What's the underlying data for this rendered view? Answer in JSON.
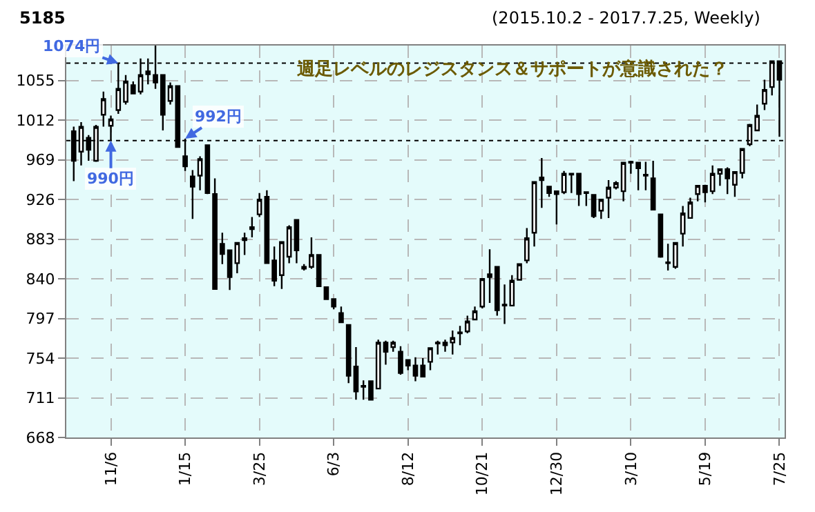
{
  "chart_data": {
    "type": "candlestick",
    "title": "5185",
    "subtitle": "(2015.10.2 - 2017.7.25, Weekly)",
    "categories": [
      null,
      null,
      null,
      null,
      null,
      "11/6",
      null,
      null,
      null,
      null,
      null,
      null,
      null,
      null,
      null,
      "1/15",
      null,
      null,
      null,
      null,
      null,
      null,
      null,
      null,
      null,
      "3/25",
      null,
      null,
      null,
      null,
      null,
      null,
      null,
      null,
      null,
      "6/3",
      null,
      null,
      null,
      null,
      null,
      null,
      null,
      null,
      null,
      "8/12",
      null,
      null,
      null,
      null,
      null,
      null,
      null,
      null,
      null,
      "10/21",
      null,
      null,
      null,
      null,
      null,
      null,
      null,
      null,
      null,
      "12/30",
      null,
      null,
      null,
      null,
      null,
      null,
      null,
      null,
      null,
      "3/10",
      null,
      null,
      null,
      null,
      null,
      null,
      null,
      null,
      null,
      "5/19",
      null,
      null,
      null,
      null,
      null,
      null,
      null,
      null,
      null,
      "7/25"
    ],
    "ohlc": [
      [
        1000,
        1005,
        946,
        968
      ],
      [
        978,
        1010,
        963,
        1005
      ],
      [
        993,
        996,
        968,
        980
      ],
      [
        968,
        1007,
        967,
        1005
      ],
      [
        1018,
        1043,
        1005,
        1035
      ],
      [
        1006,
        1017,
        990,
        1013
      ],
      [
        1023,
        1074,
        1019,
        1046
      ],
      [
        1032,
        1061,
        1029,
        1054
      ],
      [
        1050,
        1054,
        1040,
        1041
      ],
      [
        1043,
        1079,
        1040,
        1061
      ],
      [
        1062,
        1079,
        1051,
        1065
      ],
      [
        1061,
        1093,
        1046,
        1053
      ],
      [
        1061,
        1061,
        1001,
        1018
      ],
      [
        1033,
        1053,
        1029,
        1049
      ],
      [
        1049,
        1049,
        983,
        983
      ],
      [
        973,
        992,
        957,
        962
      ],
      [
        951,
        958,
        905,
        940
      ],
      [
        952,
        973,
        936,
        970
      ],
      [
        985,
        985,
        932,
        933
      ],
      [
        932,
        949,
        829,
        829
      ],
      [
        878,
        890,
        856,
        867
      ],
      [
        871,
        871,
        828,
        842
      ],
      [
        857,
        879,
        846,
        879
      ],
      [
        882,
        890,
        866,
        884
      ],
      [
        896,
        907,
        885,
        894
      ],
      [
        910,
        933,
        907,
        926
      ],
      [
        929,
        936,
        857,
        857
      ],
      [
        860,
        875,
        832,
        838
      ],
      [
        844,
        880,
        829,
        880
      ],
      [
        864,
        898,
        857,
        896
      ],
      [
        904,
        904,
        857,
        871
      ],
      [
        853,
        856,
        849,
        851
      ],
      [
        853,
        885,
        851,
        866
      ],
      [
        866,
        866,
        832,
        832
      ],
      [
        831,
        831,
        818,
        818
      ],
      [
        818,
        818,
        807,
        810
      ],
      [
        803,
        810,
        793,
        793
      ],
      [
        790,
        790,
        727,
        735
      ],
      [
        745,
        766,
        709,
        718
      ],
      [
        724,
        730,
        709,
        723
      ],
      [
        729,
        729,
        709,
        709
      ],
      [
        721,
        774,
        721,
        771
      ],
      [
        771,
        773,
        747,
        761
      ],
      [
        766,
        773,
        761,
        771
      ],
      [
        761,
        767,
        736,
        738
      ],
      [
        752,
        752,
        741,
        746
      ],
      [
        746,
        755,
        729,
        735
      ],
      [
        746,
        754,
        734,
        734
      ],
      [
        750,
        765,
        741,
        765
      ],
      [
        771,
        773,
        758,
        770
      ],
      [
        771,
        774,
        761,
        768
      ],
      [
        771,
        784,
        758,
        776
      ],
      [
        781,
        789,
        768,
        782
      ],
      [
        783,
        800,
        781,
        794
      ],
      [
        796,
        810,
        795,
        805
      ],
      [
        810,
        840,
        808,
        840
      ],
      [
        842,
        872,
        814,
        845
      ],
      [
        853,
        853,
        800,
        806
      ],
      [
        811,
        834,
        791,
        812
      ],
      [
        811,
        844,
        811,
        838
      ],
      [
        839,
        856,
        838,
        856
      ],
      [
        860,
        895,
        857,
        884
      ],
      [
        890,
        945,
        875,
        945
      ],
      [
        950,
        971,
        917,
        947
      ],
      [
        940,
        940,
        929,
        933
      ],
      [
        935,
        935,
        899,
        932
      ],
      [
        934,
        957,
        932,
        954
      ],
      [
        954,
        954,
        933,
        953
      ],
      [
        954,
        954,
        919,
        932
      ],
      [
        934,
        934,
        919,
        933
      ],
      [
        931,
        931,
        906,
        908
      ],
      [
        914,
        926,
        905,
        926
      ],
      [
        928,
        947,
        906,
        939
      ],
      [
        939,
        946,
        937,
        944
      ],
      [
        935,
        966,
        924,
        966
      ],
      [
        966,
        968,
        954,
        967
      ],
      [
        966,
        966,
        936,
        960
      ],
      [
        952,
        967,
        936,
        953
      ],
      [
        949,
        968,
        915,
        915
      ],
      [
        910,
        910,
        863,
        864
      ],
      [
        857,
        878,
        849,
        858
      ],
      [
        853,
        879,
        851,
        879
      ],
      [
        889,
        919,
        875,
        911
      ],
      [
        906,
        928,
        906,
        923
      ],
      [
        932,
        941,
        924,
        941
      ],
      [
        941,
        942,
        923,
        934
      ],
      [
        935,
        963,
        932,
        954
      ],
      [
        954,
        959,
        941,
        959
      ],
      [
        959,
        961,
        932,
        949
      ],
      [
        942,
        956,
        929,
        956
      ],
      [
        955,
        981,
        949,
        981
      ],
      [
        986,
        1008,
        984,
        1007
      ],
      [
        1001,
        1029,
        1001,
        1017
      ],
      [
        1030,
        1056,
        1023,
        1045
      ],
      [
        1048,
        1076,
        1039,
        1076
      ],
      [
        1076,
        1076,
        994,
        1056
      ]
    ],
    "ylim": [
      668,
      1093
    ],
    "yticks": [
      668,
      711,
      754,
      797,
      840,
      883,
      926,
      969,
      1012,
      1055
    ],
    "grid": true,
    "ref_lines": [
      {
        "axis": "y",
        "value": 1074,
        "line_style": "dotted",
        "color": "#000000"
      },
      {
        "axis": "y",
        "value": 990,
        "line_style": "dotted",
        "color": "#000000"
      }
    ],
    "annotations": [
      {
        "text": "1074円",
        "y": 1074
      },
      {
        "text": "990円",
        "y": 990
      },
      {
        "text": "992円",
        "y": 992
      },
      "週足レベルのレジスタンス＆サポートが意識された？"
    ]
  }
}
